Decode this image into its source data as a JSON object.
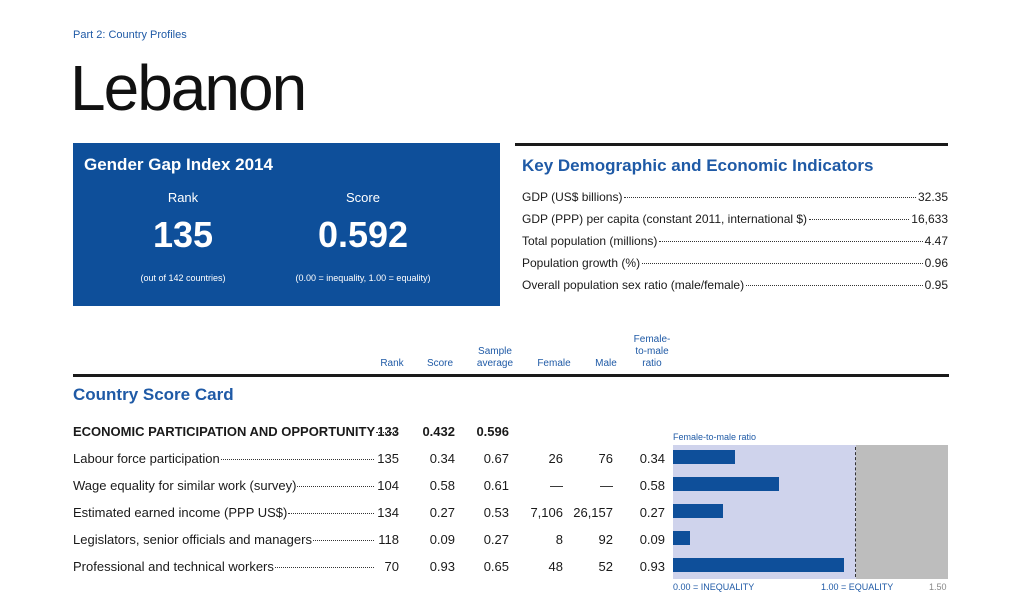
{
  "header": {
    "part_label": "Part 2: Country Profiles",
    "country": "Lebanon"
  },
  "ggi": {
    "title": "Gender Gap Index 2014",
    "rank_label": "Rank",
    "rank_value": "135",
    "rank_note": "(out of 142 countries)",
    "score_label": "Score",
    "score_value": "0.592",
    "score_note": "(0.00 = inequality, 1.00 = equality)"
  },
  "key_indicators": {
    "title": "Key Demographic and Economic Indicators",
    "rows": [
      {
        "label": "GDP (US$ billions)",
        "value": "32.35"
      },
      {
        "label": "GDP (PPP) per capita (constant 2011, international $)",
        "value": "16,633"
      },
      {
        "label": "Total population (millions)",
        "value": "4.47"
      },
      {
        "label": "Population growth (%)",
        "value": "0.96"
      },
      {
        "label": "Overall population sex ratio (male/female)",
        "value": "0.95"
      }
    ]
  },
  "score_card": {
    "title": "Country Score Card",
    "columns": {
      "rank": "Rank",
      "score": "Score",
      "sample1": "Sample",
      "sample2": "average",
      "female": "Female",
      "male": "Male",
      "ratio1": "Female-",
      "ratio2": "to-male",
      "ratio3": "ratio"
    },
    "category": {
      "label": "ECONOMIC PARTICIPATION AND OPPORTUNITY",
      "rank": "133",
      "score": "0.432",
      "sample_avg": "0.596"
    },
    "rows": [
      {
        "label": "Labour force participation",
        "rank": "135",
        "score": "0.34",
        "sample_avg": "0.67",
        "female": "26",
        "male": "76",
        "ratio": "0.34",
        "ratio_num": 0.34
      },
      {
        "label": "Wage equality for similar work (survey)",
        "rank": "104",
        "score": "0.58",
        "sample_avg": "0.61",
        "female": "—",
        "male": "—",
        "ratio": "0.58",
        "ratio_num": 0.58
      },
      {
        "label": "Estimated earned income (PPP US$)",
        "rank": "134",
        "score": "0.27",
        "sample_avg": "0.53",
        "female": "7,106",
        "male": "26,157",
        "ratio": "0.27",
        "ratio_num": 0.27
      },
      {
        "label": "Legislators, senior officials and managers",
        "rank": "118",
        "score": "0.09",
        "sample_avg": "0.27",
        "female": "8",
        "male": "92",
        "ratio": "0.09",
        "ratio_num": 0.09
      },
      {
        "label": "Professional and technical workers",
        "rank": "70",
        "score": "0.93",
        "sample_avg": "0.65",
        "female": "48",
        "male": "52",
        "ratio": "0.93",
        "ratio_num": 0.93
      }
    ],
    "chart": {
      "title": "Female-to-male ratio",
      "axis_min_label": "0.00 = INEQUALITY",
      "axis_eq_label": "1.00 = EQUALITY",
      "axis_max_label": "1.50",
      "max": 1.5,
      "equality": 1.0,
      "bar_color": "#0e4f9a"
    }
  }
}
